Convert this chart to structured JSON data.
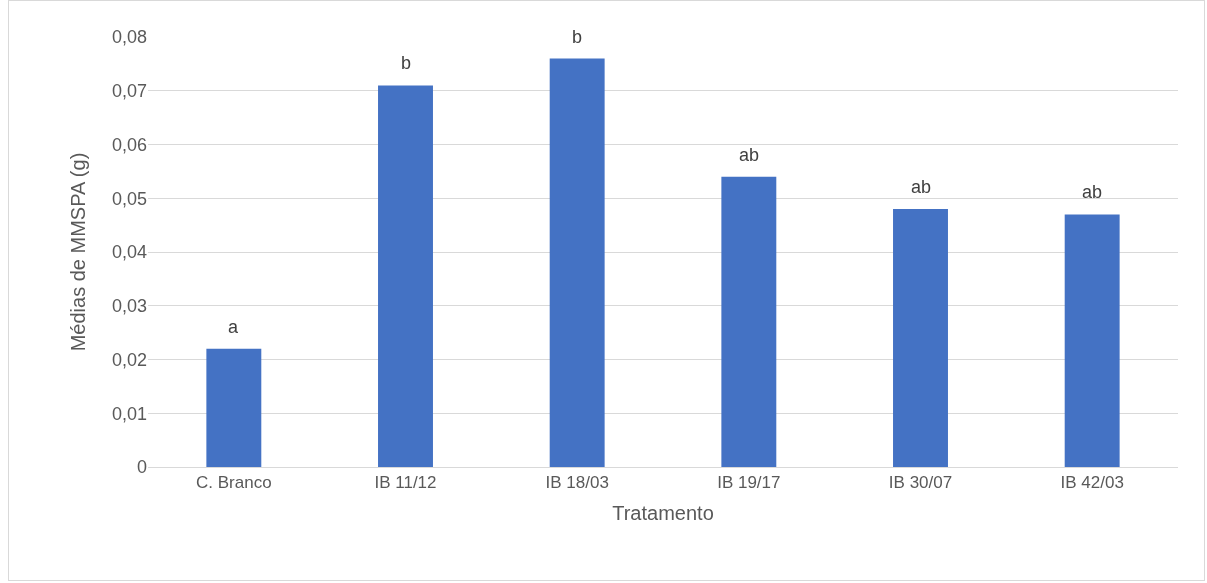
{
  "chart_data": {
    "type": "bar",
    "xlabel": "Tratamento",
    "ylabel": "Médias de MMSPA (g)",
    "categories": [
      "C. Branco",
      "IB 11/12",
      "IB 18/03",
      "IB 19/17",
      "IB 30/07",
      "IB 42/03"
    ],
    "values": [
      0.022,
      0.071,
      0.076,
      0.054,
      0.048,
      0.047
    ],
    "color": "#4472c4",
    "ylim": [
      0,
      0.08
    ],
    "yticks": [
      0,
      {
        "value": 0.01,
        "label": "0,01"
      },
      {
        "value": 0.02,
        "label": "0,02"
      },
      {
        "value": 0.03,
        "label": "0,03"
      },
      {
        "value": 0.04,
        "label": "0,04"
      },
      {
        "value": 0.05,
        "label": "0,05"
      },
      {
        "value": 0.06,
        "label": "0,06"
      },
      {
        "value": 0.07,
        "label": "0,07"
      },
      {
        "value": 0.08,
        "label": "0,08"
      }
    ],
    "grid": "y",
    "annotations": [
      {
        "text": "a",
        "x": "C. Branco",
        "y": 0.022
      },
      {
        "text": "b",
        "x": "IB 11/12",
        "y": 0.071
      },
      {
        "text": "b",
        "x": "IB 18/03",
        "y": 0.076
      },
      {
        "text": "ab",
        "x": "IB 19/17",
        "y": 0.054
      },
      {
        "text": "ab",
        "x": "IB 30/07",
        "y": 0.048
      },
      {
        "text": "ab",
        "x": "IB 42/03",
        "y": 0.047
      }
    ]
  }
}
